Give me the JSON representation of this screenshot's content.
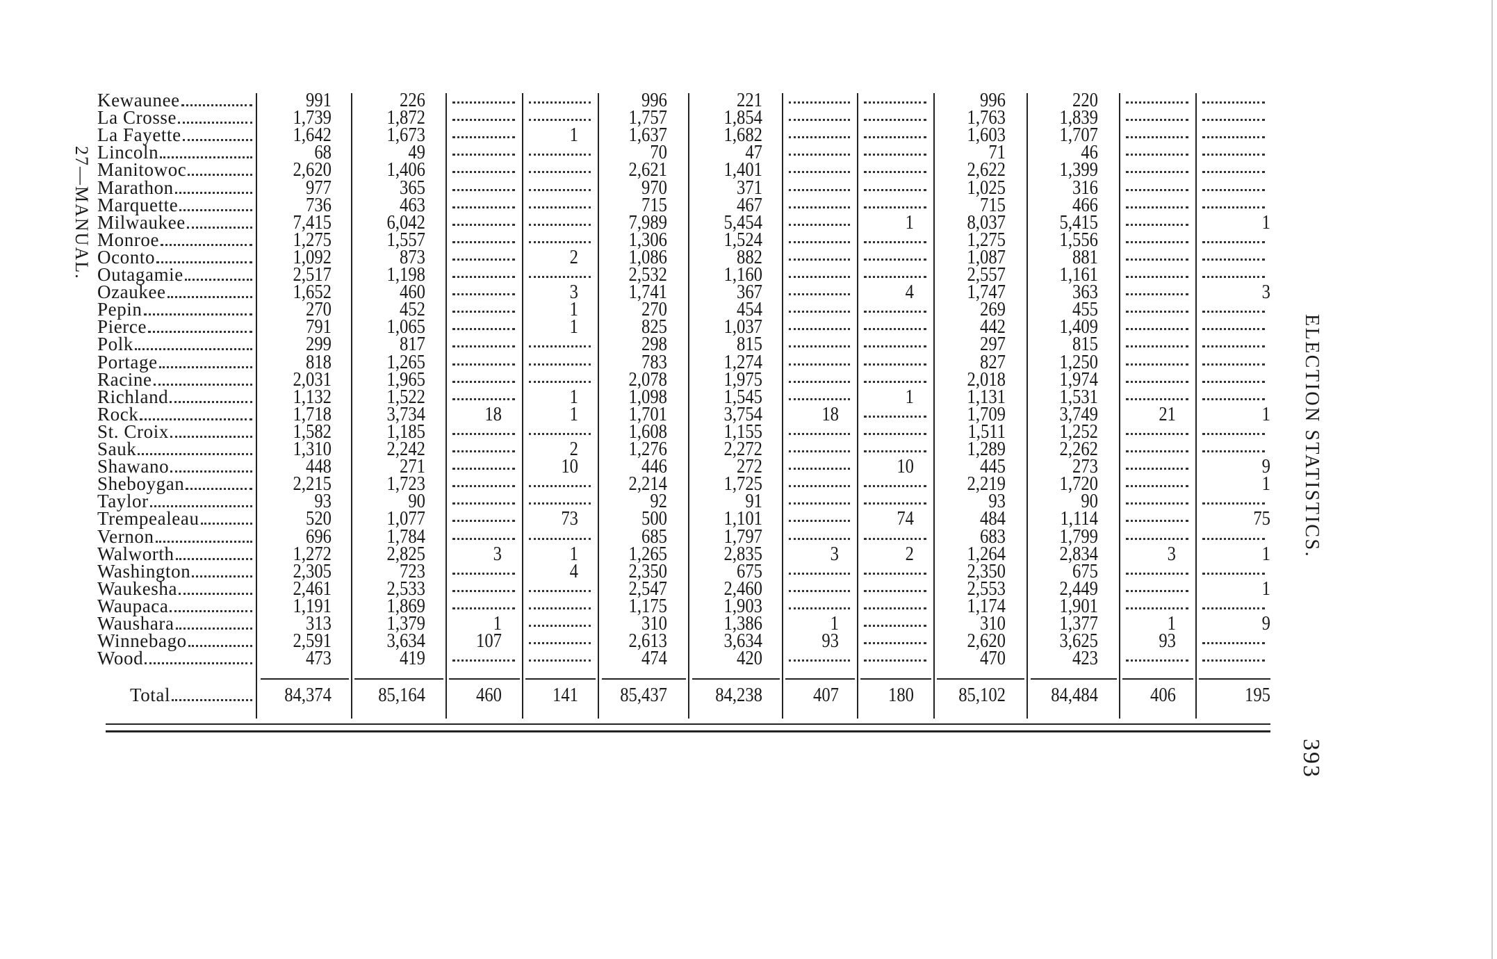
{
  "page_number": "393",
  "running_head": "ELECTION STATISTICS.",
  "signature_mark": "27—MANUAL.",
  "total_label": "Total",
  "rows": [
    {
      "name": "Kewaunee",
      "values": [
        "991",
        "226",
        "",
        "",
        "996",
        "221",
        "",
        "",
        "996",
        "220",
        "",
        ""
      ]
    },
    {
      "name": "La Crosse",
      "values": [
        "1,739",
        "1,872",
        "",
        "",
        "1,757",
        "1,854",
        "",
        "",
        "1,763",
        "1,839",
        "",
        ""
      ]
    },
    {
      "name": "La Fayette",
      "values": [
        "1,642",
        "1,673",
        "",
        "1",
        "1,637",
        "1,682",
        "",
        "",
        "1,603",
        "1,707",
        "",
        ""
      ]
    },
    {
      "name": "Lincoln",
      "values": [
        "68",
        "49",
        "",
        "",
        "70",
        "47",
        "",
        "",
        "71",
        "46",
        "",
        ""
      ]
    },
    {
      "name": "Manitowoc",
      "values": [
        "2,620",
        "1,406",
        "",
        "",
        "2,621",
        "1,401",
        "",
        "",
        "2,622",
        "1,399",
        "",
        ""
      ]
    },
    {
      "name": "Marathon",
      "values": [
        "977",
        "365",
        "",
        "",
        "970",
        "371",
        "",
        "",
        "1,025",
        "316",
        "",
        ""
      ]
    },
    {
      "name": "Marquette",
      "values": [
        "736",
        "463",
        "",
        "",
        "715",
        "467",
        "",
        "",
        "715",
        "466",
        "",
        ""
      ]
    },
    {
      "name": "Milwaukee",
      "values": [
        "7,415",
        "6,042",
        "",
        "",
        "7,989",
        "5,454",
        "",
        "1",
        "8,037",
        "5,415",
        "",
        "1"
      ]
    },
    {
      "name": "Monroe",
      "values": [
        "1,275",
        "1,557",
        "",
        "",
        "1,306",
        "1,524",
        "",
        "",
        "1,275",
        "1,556",
        "",
        ""
      ]
    },
    {
      "name": "Oconto",
      "values": [
        "1,092",
        "873",
        "",
        "2",
        "1,086",
        "882",
        "",
        "",
        "1,087",
        "881",
        "",
        ""
      ]
    },
    {
      "name": "Outagamie",
      "values": [
        "2,517",
        "1,198",
        "",
        "",
        "2,532",
        "1,160",
        "",
        "",
        "2,557",
        "1,161",
        "",
        ""
      ]
    },
    {
      "name": "Ozaukee",
      "values": [
        "1,652",
        "460",
        "",
        "3",
        "1,741",
        "367",
        "",
        "4",
        "1,747",
        "363",
        "",
        "3"
      ]
    },
    {
      "name": "Pepin",
      "values": [
        "270",
        "452",
        "",
        "1",
        "270",
        "454",
        "",
        "",
        "269",
        "455",
        "",
        ""
      ]
    },
    {
      "name": "Pierce",
      "values": [
        "791",
        "1,065",
        "",
        "1",
        "825",
        "1,037",
        "",
        "",
        "442",
        "1,409",
        "",
        ""
      ]
    },
    {
      "name": "Polk",
      "values": [
        "299",
        "817",
        "",
        "",
        "298",
        "815",
        "",
        "",
        "297",
        "815",
        "",
        ""
      ]
    },
    {
      "name": "Portage",
      "values": [
        "818",
        "1,265",
        "",
        "",
        "783",
        "1,274",
        "",
        "",
        "827",
        "1,250",
        "",
        ""
      ]
    },
    {
      "name": "Racine",
      "values": [
        "2,031",
        "1,965",
        "",
        "",
        "2,078",
        "1,975",
        "",
        "",
        "2,018",
        "1,974",
        "",
        ""
      ]
    },
    {
      "name": "Richland",
      "values": [
        "1,132",
        "1,522",
        "",
        "1",
        "1,098",
        "1,545",
        "",
        "1",
        "1,131",
        "1,531",
        "",
        ""
      ]
    },
    {
      "name": "Rock",
      "values": [
        "1,718",
        "3,734",
        "18",
        "1",
        "1,701",
        "3,754",
        "18",
        "",
        "1,709",
        "3,749",
        "21",
        "1"
      ]
    },
    {
      "name": "St. Croix",
      "values": [
        "1,582",
        "1,185",
        "",
        "",
        "1,608",
        "1,155",
        "",
        "",
        "1,511",
        "1,252",
        "",
        ""
      ]
    },
    {
      "name": "Sauk",
      "values": [
        "1,310",
        "2,242",
        "",
        "2",
        "1,276",
        "2,272",
        "",
        "",
        "1,289",
        "2,262",
        "",
        ""
      ]
    },
    {
      "name": "Shawano",
      "values": [
        "448",
        "271",
        "",
        "10",
        "446",
        "272",
        "",
        "10",
        "445",
        "273",
        "",
        "9"
      ]
    },
    {
      "name": "Sheboygan",
      "values": [
        "2,215",
        "1,723",
        "",
        "",
        "2,214",
        "1,725",
        "",
        "",
        "2,219",
        "1,720",
        "",
        "1"
      ]
    },
    {
      "name": "Taylor",
      "values": [
        "93",
        "90",
        "",
        "",
        "92",
        "91",
        "",
        "",
        "93",
        "90",
        "",
        ""
      ]
    },
    {
      "name": "Trempealeau",
      "values": [
        "520",
        "1,077",
        "",
        "73",
        "500",
        "1,101",
        "",
        "74",
        "484",
        "1,114",
        "",
        "75"
      ]
    },
    {
      "name": "Vernon",
      "values": [
        "696",
        "1,784",
        "",
        "",
        "685",
        "1,797",
        "",
        "",
        "683",
        "1,799",
        "",
        ""
      ]
    },
    {
      "name": "Walworth",
      "values": [
        "1,272",
        "2,825",
        "3",
        "1",
        "1,265",
        "2,835",
        "3",
        "2",
        "1,264",
        "2,834",
        "3",
        "1"
      ]
    },
    {
      "name": "Washington",
      "values": [
        "2,305",
        "723",
        "",
        "4",
        "2,350",
        "675",
        "",
        "",
        "2,350",
        "675",
        "",
        ""
      ]
    },
    {
      "name": "Waukesha",
      "values": [
        "2,461",
        "2,533",
        "",
        "",
        "2,547",
        "2,460",
        "",
        "",
        "2,553",
        "2,449",
        "",
        "1"
      ]
    },
    {
      "name": "Waupaca",
      "values": [
        "1,191",
        "1,869",
        "",
        "",
        "1,175",
        "1,903",
        "",
        "",
        "1,174",
        "1,901",
        "",
        ""
      ]
    },
    {
      "name": "Waushara",
      "values": [
        "313",
        "1,379",
        "1",
        "",
        "310",
        "1,386",
        "1",
        "",
        "310",
        "1,377",
        "1",
        "9"
      ]
    },
    {
      "name": "Winnebago",
      "values": [
        "2,591",
        "3,634",
        "107",
        "",
        "2,613",
        "3,634",
        "93",
        "",
        "2,620",
        "3,625",
        "93",
        ""
      ]
    },
    {
      "name": "Wood",
      "values": [
        "473",
        "419",
        "",
        "",
        "474",
        "420",
        "",
        "",
        "470",
        "423",
        "",
        ""
      ]
    }
  ],
  "totals": [
    "84,374",
    "85,164",
    "460",
    "141",
    "85,437",
    "84,238",
    "407",
    "180",
    "85,102",
    "84,484",
    "406",
    "195"
  ]
}
